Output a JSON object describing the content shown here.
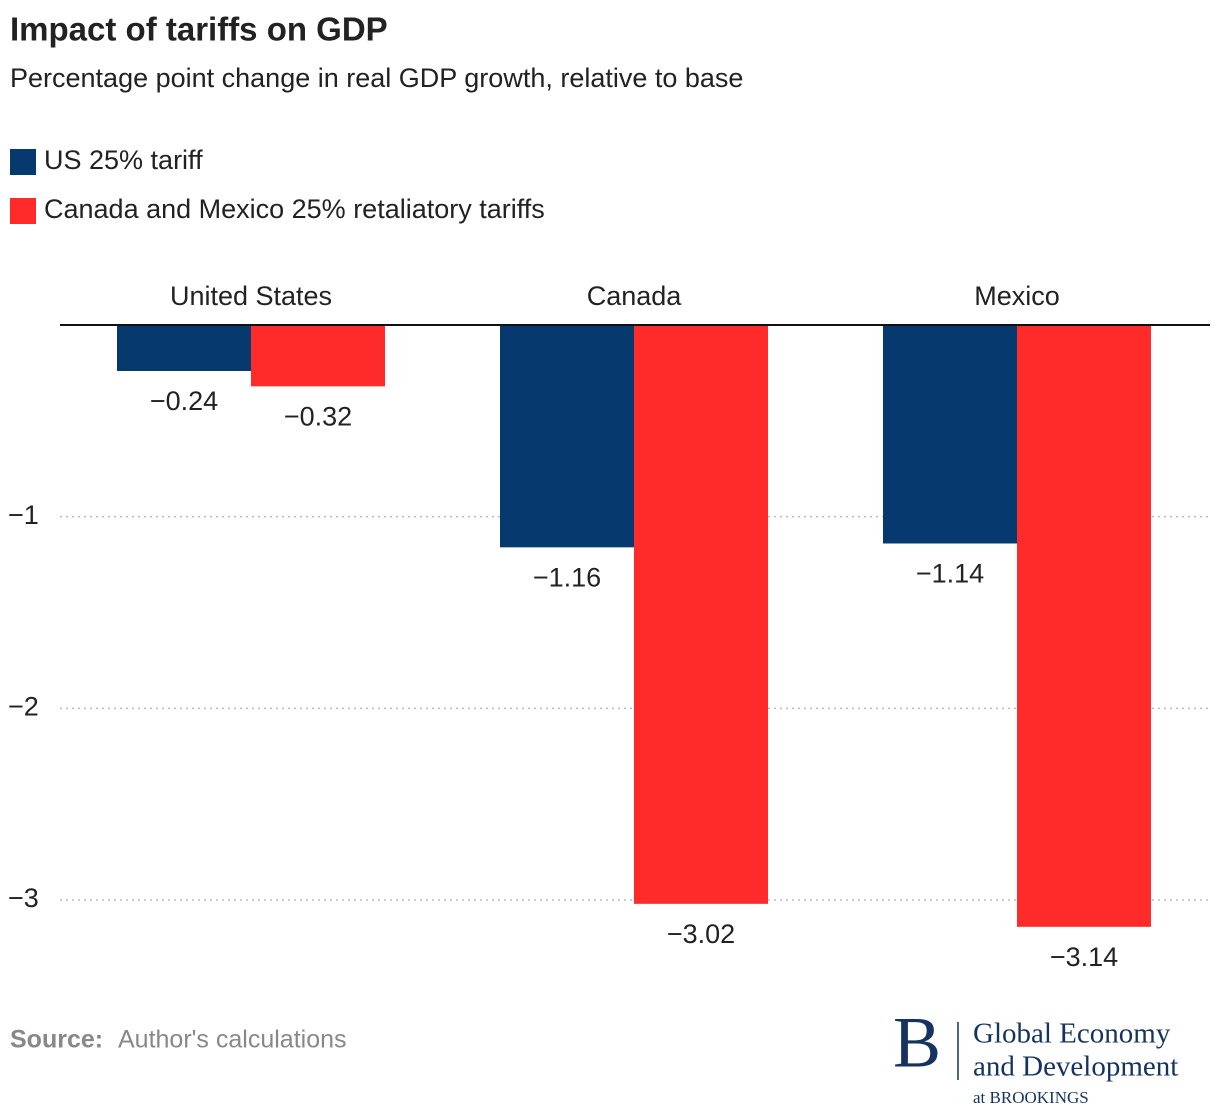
{
  "chart_data": {
    "type": "bar",
    "title": "Impact of tariffs on GDP",
    "subtitle": "Percentage point change in real GDP growth, relative to base",
    "categories": [
      "United States",
      "Canada",
      "Mexico"
    ],
    "series": [
      {
        "name": "US 25% tariff",
        "color": "#063a6f",
        "values": [
          -0.24,
          -1.16,
          -1.14
        ],
        "value_labels": [
          "−0.24",
          "−1.16",
          "−1.14"
        ]
      },
      {
        "name": "Canada and Mexico 25% retaliatory tariffs",
        "color": "#ff2a2a",
        "values": [
          -0.32,
          -3.02,
          -3.14
        ],
        "value_labels": [
          "−0.32",
          "−3.02",
          "−3.14"
        ]
      }
    ],
    "ylim": [
      -3.3,
      0
    ],
    "yticks": [
      {
        "value": -1,
        "label": "−1"
      },
      {
        "value": -2,
        "label": "−2"
      },
      {
        "value": -3,
        "label": "−3"
      }
    ],
    "grid": true,
    "source_label": "Source:",
    "source": "Author's calculations"
  },
  "branding": {
    "mark": "B",
    "lines": [
      "Global Economy",
      "and Development",
      "at BROOKINGS"
    ]
  }
}
